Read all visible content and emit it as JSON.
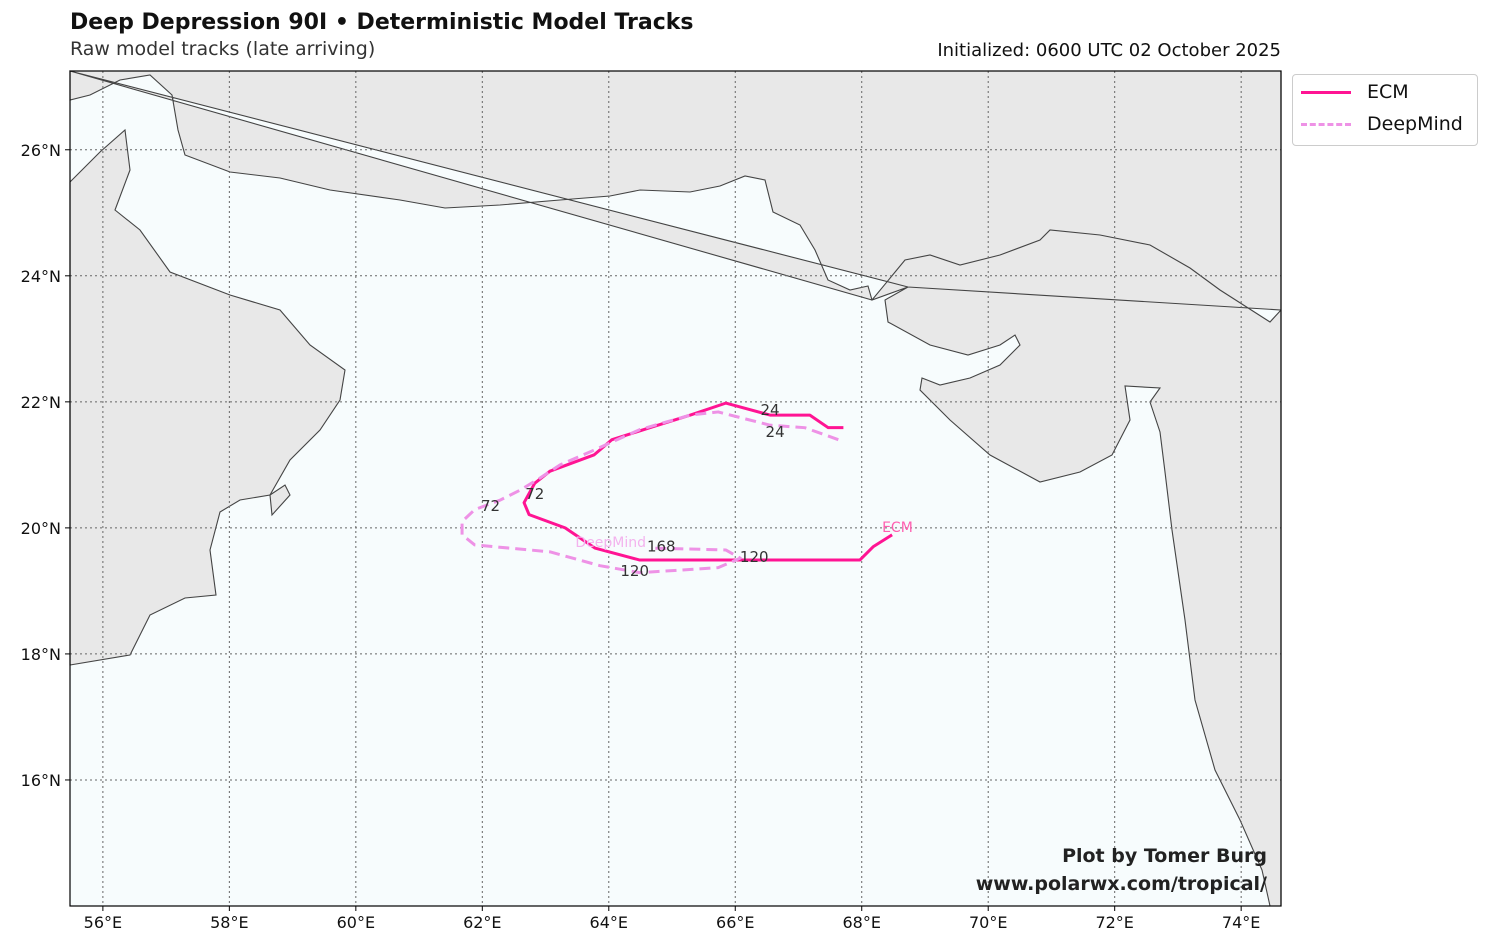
{
  "header": {
    "title": "Deep Depression 90I • Deterministic Model Tracks",
    "subtitle": "Raw model tracks (late arriving)",
    "initialized": "Initialized: 0600 UTC 02 October 2025"
  },
  "credit": {
    "line1": "Plot by Tomer Burg",
    "line2": "www.polarwx.com/tropical/"
  },
  "colors": {
    "ocean": "#f7fcfd",
    "land": "#e8e8e8",
    "ecm": "#ff1493",
    "deepmind": "#ee92e6"
  },
  "chart_data": {
    "type": "line",
    "title": "Deep Depression 90I • Deterministic Model Tracks",
    "xlim": [
      55.48,
      74.63
    ],
    "ylim": [
      14.0,
      27.25
    ],
    "grid": true,
    "legend_placement": "outside-top-right",
    "x_ticks": [
      56,
      58,
      60,
      62,
      64,
      66,
      68,
      70,
      72,
      74
    ],
    "x_tick_labels": [
      "56°E",
      "58°E",
      "60°E",
      "62°E",
      "64°E",
      "66°E",
      "68°E",
      "70°E",
      "72°E",
      "74°E"
    ],
    "y_ticks": [
      16,
      18,
      20,
      22,
      24,
      26
    ],
    "y_tick_labels": [
      "16°N",
      "18°N",
      "20°N",
      "22°N",
      "24°N",
      "26°N"
    ],
    "series": [
      {
        "name": "ECM",
        "style": "solid",
        "lon": [
          67.71,
          67.47,
          67.18,
          66.55,
          65.85,
          65.29,
          64.65,
          64.05,
          63.77,
          63.07,
          62.83,
          62.66,
          62.74,
          63.31,
          63.78,
          64.49,
          67.97,
          68.18,
          68.48
        ],
        "lat": [
          21.59,
          21.59,
          21.79,
          21.79,
          21.98,
          21.79,
          21.59,
          21.4,
          21.16,
          20.9,
          20.71,
          20.4,
          20.21,
          20.0,
          19.68,
          19.49,
          19.49,
          19.7,
          19.89
        ],
        "end_label": "ECM",
        "hour_labels": [
          {
            "text": "24",
            "lon": 66.55,
            "lat": 21.81
          },
          {
            "text": "72",
            "lon": 62.83,
            "lat": 20.55
          },
          {
            "text": "120",
            "lon": 66.3,
            "lat": 19.55
          }
        ]
      },
      {
        "name": "DeepMind",
        "style": "dashed",
        "lon": [
          67.63,
          67.1,
          66.55,
          66.08,
          65.73,
          65.29,
          64.49,
          63.78,
          63.23,
          62.91,
          62.6,
          62.28,
          61.88,
          61.68,
          61.68,
          61.88,
          63.07,
          63.86,
          64.49,
          65.13,
          65.73,
          66.08,
          65.85,
          64.65
        ],
        "lat": [
          21.4,
          21.59,
          21.63,
          21.75,
          21.84,
          21.79,
          21.56,
          21.24,
          21.0,
          20.79,
          20.6,
          20.44,
          20.29,
          20.1,
          19.89,
          19.73,
          19.62,
          19.4,
          19.29,
          19.33,
          19.37,
          19.52,
          19.65,
          19.68
        ],
        "end_label": "DeepMind",
        "hour_labels": [
          {
            "text": "24",
            "lon": 66.63,
            "lat": 21.62
          },
          {
            "text": "72",
            "lon": 62.13,
            "lat": 20.36
          },
          {
            "text": "120",
            "lon": 64.41,
            "lat": 19.33
          },
          {
            "text": "168",
            "lon": 64.83,
            "lat": 19.72
          }
        ]
      }
    ]
  }
}
